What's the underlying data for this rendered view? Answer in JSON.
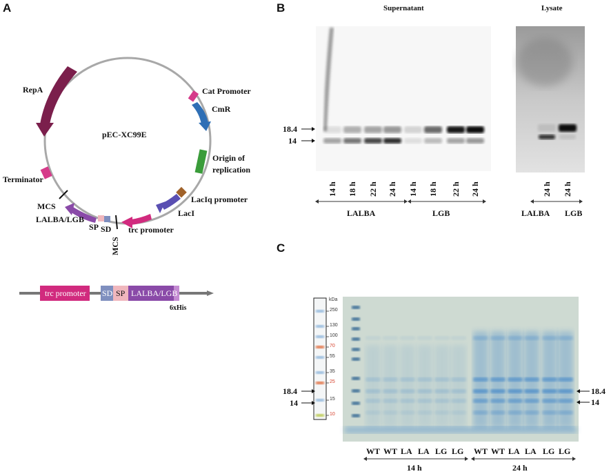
{
  "panelA": {
    "letter": "A",
    "plasmid_name": "pEC-XC99E",
    "features": {
      "repA": "RepA",
      "cat_promoter": "Cat Promoter",
      "cmr": "CmR",
      "origin_line1": "Origin of",
      "origin_line2": "replication",
      "laciq": "LacIq promoter",
      "laci": "LacI",
      "trc": "trc promoter",
      "sd": "SD",
      "sp": "SP",
      "lalba_lgb": "LALBA/LGB",
      "mcs_top": "MCS",
      "mcs_bottom": "MCS",
      "terminator": "Terminator"
    },
    "construct": {
      "trc": "trc promoter",
      "sd": "SD",
      "sp": "SP",
      "gene": "LALBA/LGB",
      "his": "6xHis"
    },
    "colors": {
      "repA": "#7b1f4c",
      "cat": "#d63b8a",
      "cmr": "#2f6fb5",
      "ori": "#3a9c3a",
      "laciq": "#a0622a",
      "laci": "#5a4fb2",
      "trc": "#d12a7e",
      "gene": "#8a4aa8",
      "sd": "#7f8fbf",
      "sp": "#f0b7bd",
      "term": "#d63b8a"
    }
  },
  "panelB": {
    "letter": "B",
    "supernatant_title": "Supernatant",
    "lysate_title": "Lysate",
    "marker_high": "18.4",
    "marker_low": "14",
    "supernatant_lanes": [
      "14 h",
      "18 h",
      "22 h",
      "24 h",
      "14 h",
      "18 h",
      "22 h",
      "24 h"
    ],
    "lysate_lanes": [
      "24 h",
      "24 h"
    ],
    "group_lalba": "LALBA",
    "group_lgb": "LGB",
    "lysate_lalba": "LALBA",
    "lysate_lgb": "LGB",
    "band_intensity": {
      "supernatant_lower": [
        0.35,
        0.55,
        0.75,
        0.85,
        0.1,
        0.25,
        0.35,
        0.4
      ],
      "supernatant_upper": [
        0.1,
        0.3,
        0.35,
        0.4,
        0.15,
        0.6,
        0.95,
        1.0
      ],
      "lysate_lower": [
        0.8,
        0.1
      ],
      "lysate_upper": [
        0.1,
        1.0
      ]
    }
  },
  "panelC": {
    "letter": "C",
    "ladder_unit": "kDa",
    "ladder_marks": [
      "250",
      "130",
      "100",
      "70",
      "55",
      "35",
      "25",
      "15",
      "10"
    ],
    "ladder_mark_colors": [
      "#333",
      "#333",
      "#333",
      "#d6402b",
      "#333",
      "#333",
      "#d6402b",
      "#333",
      "#d6402b"
    ],
    "left_marker_high": "18.4",
    "left_marker_low": "14",
    "right_marker_high": "18.4",
    "right_marker_low": "14",
    "lanes": [
      "WT",
      "WT",
      "LA",
      "LA",
      "LG",
      "LG",
      "WT",
      "WT",
      "LA",
      "LA",
      "LG",
      "LG"
    ],
    "group_14h": "14 h",
    "group_24h": "24 h",
    "gel_colors": {
      "background": "#c8d6cf",
      "stain": "#2b79c8"
    }
  }
}
